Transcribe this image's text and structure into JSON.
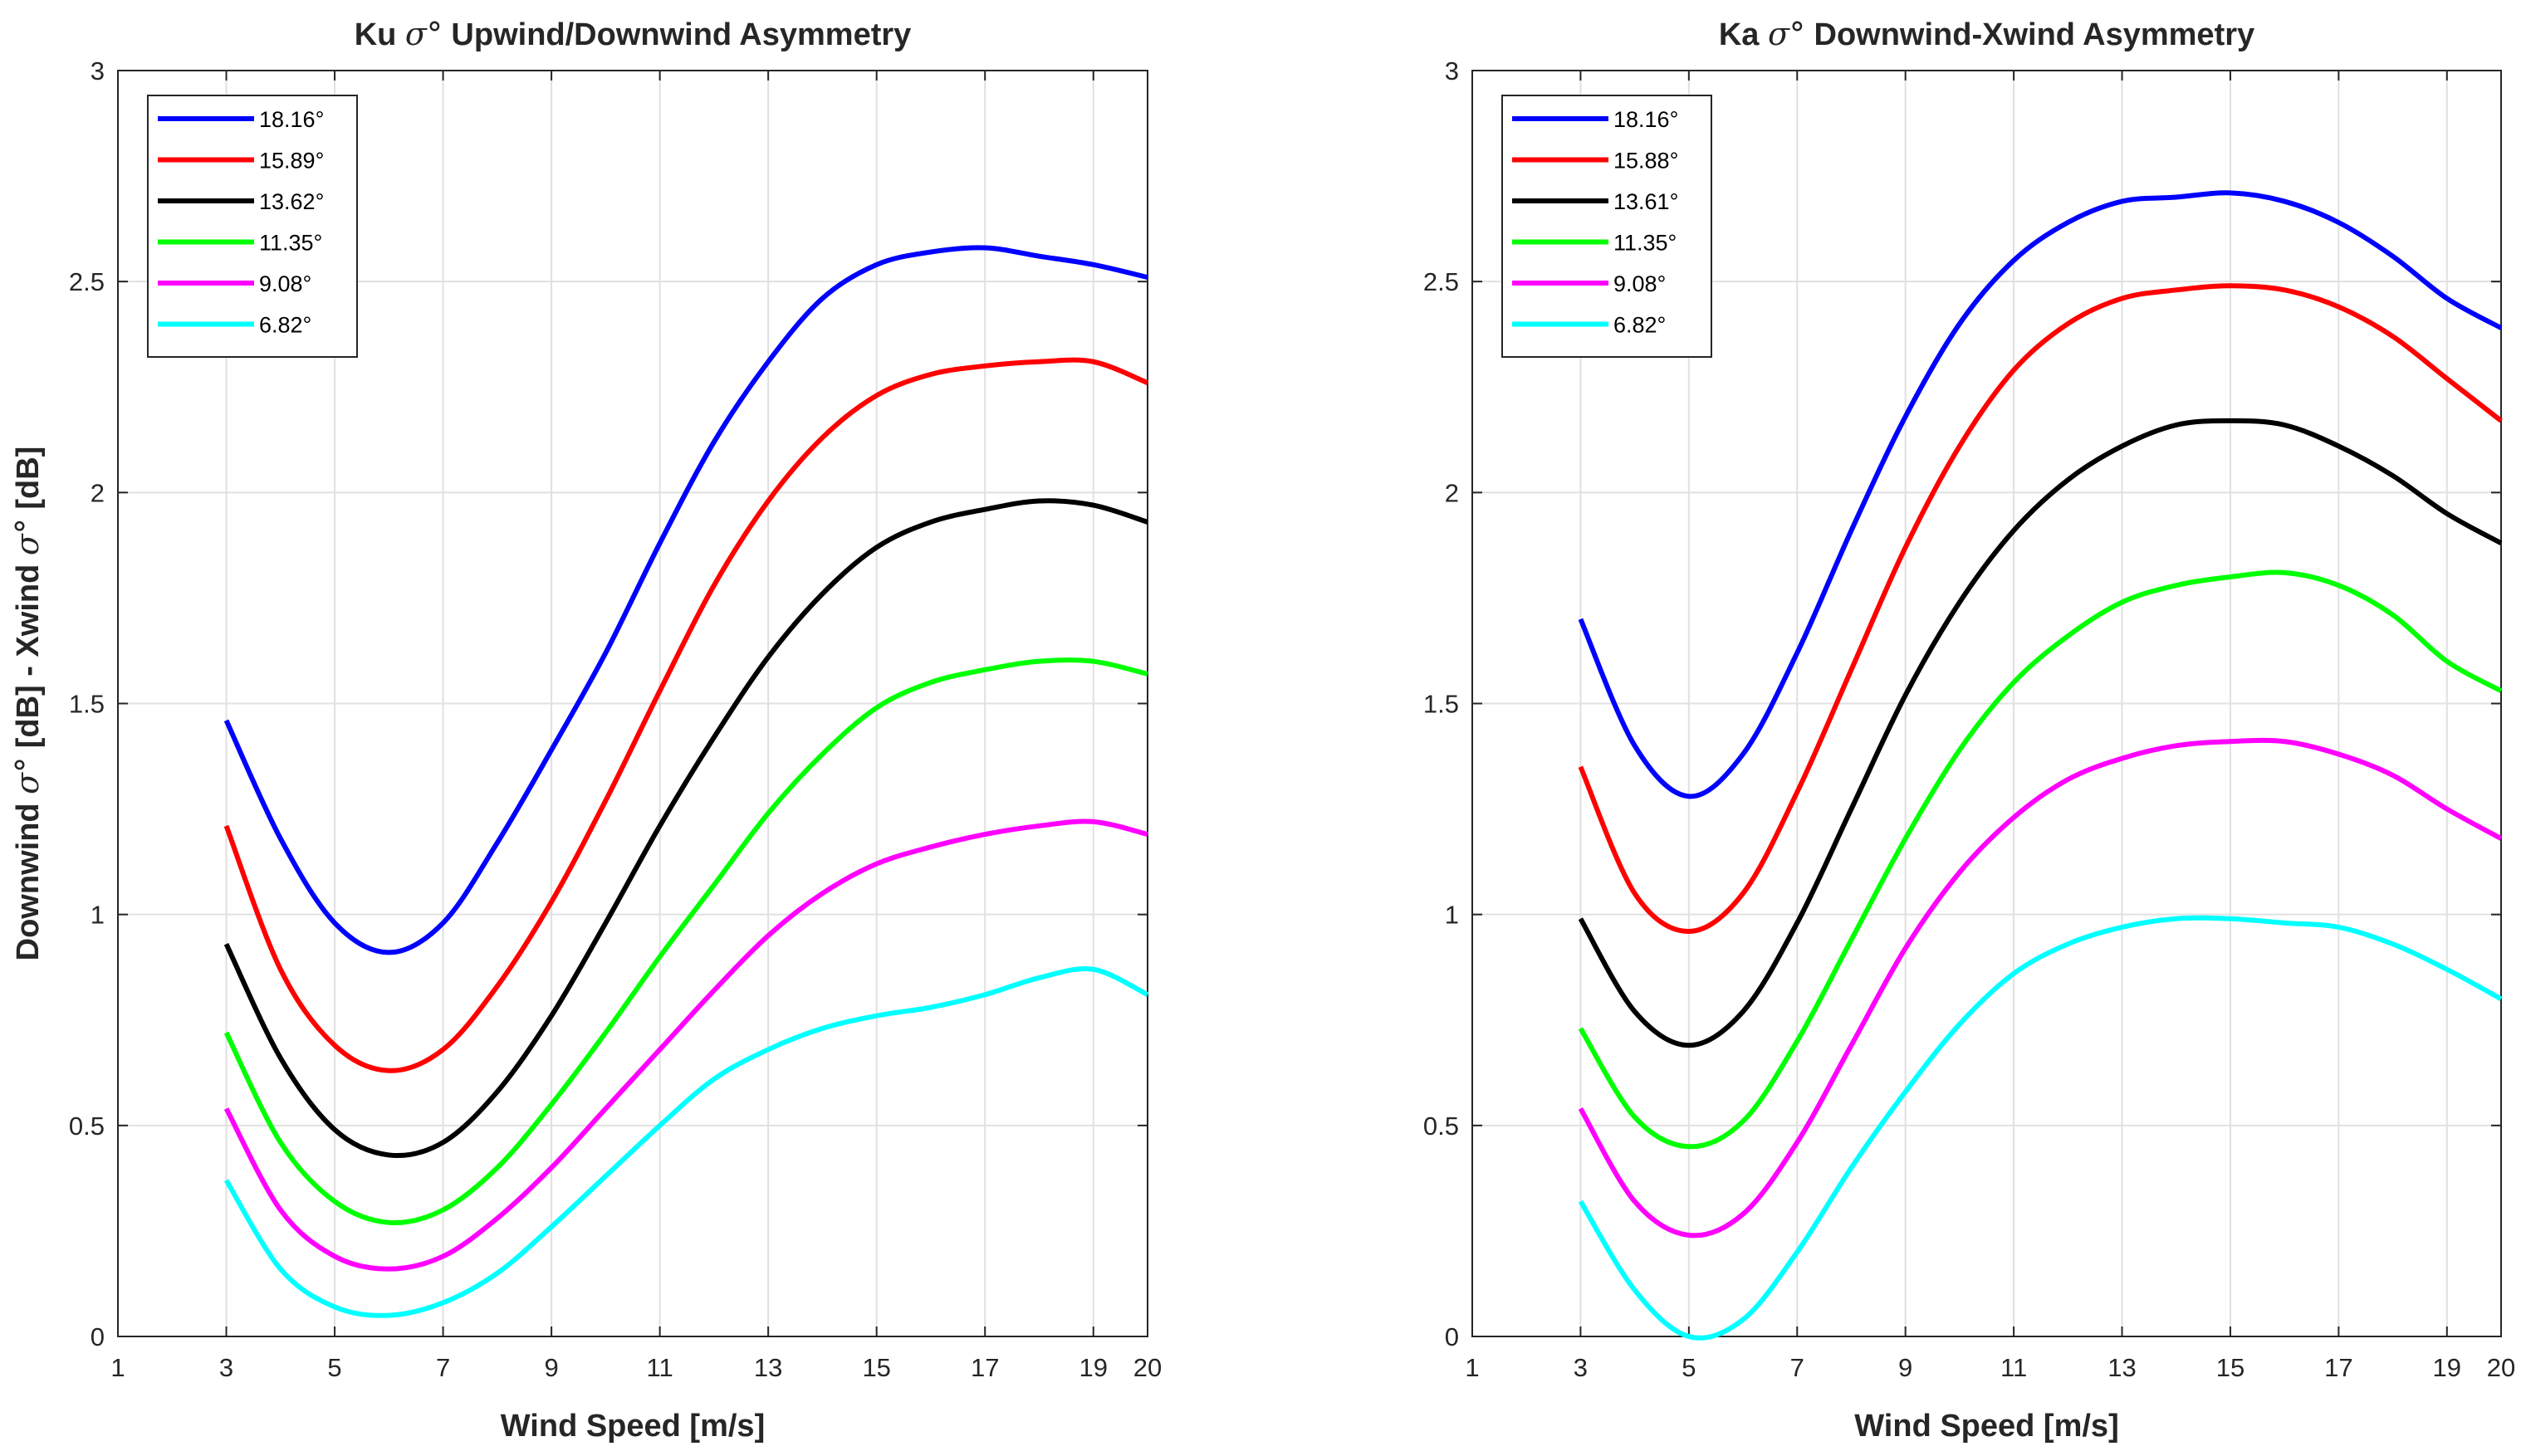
{
  "chart_data": [
    {
      "type": "line",
      "title_prefix": "Ku ",
      "title_symbol": "σ°",
      "title_suffix": " Upwind/Downwind Asymmetry",
      "xlabel": "Wind Speed [m/s]",
      "ylabel_part1": "Downwind ",
      "ylabel_symbol1": "σ°",
      "ylabel_part2": " [dB] - Xwind ",
      "ylabel_symbol2": "σ°",
      "ylabel_part3": " [dB]",
      "xlim": [
        1,
        20
      ],
      "ylim": [
        0,
        3
      ],
      "xticks": [
        1,
        3,
        5,
        7,
        9,
        11,
        13,
        15,
        17,
        19,
        20
      ],
      "yticks": [
        0,
        0.5,
        1,
        1.5,
        2,
        2.5,
        3
      ],
      "ytick_labels": [
        "0",
        "0.5",
        "1",
        "1.5",
        "2",
        "2.5",
        "3"
      ],
      "grid": true,
      "legend_position": "top-left",
      "series": [
        {
          "name": "18.16°",
          "color": "#0000ff",
          "points": [
            [
              3,
              1.46
            ],
            [
              4,
              1.18
            ],
            [
              5,
              0.98
            ],
            [
              6,
              0.91
            ],
            [
              7,
              0.98
            ],
            [
              8,
              1.17
            ],
            [
              9,
              1.39
            ],
            [
              10,
              1.62
            ],
            [
              11,
              1.88
            ],
            [
              12,
              2.12
            ],
            [
              13,
              2.31
            ],
            [
              14,
              2.46
            ],
            [
              15,
              2.54
            ],
            [
              16,
              2.57
            ],
            [
              17,
              2.58
            ],
            [
              18,
              2.56
            ],
            [
              19,
              2.54
            ],
            [
              20,
              2.51
            ]
          ]
        },
        {
          "name": "15.89°",
          "color": "#ff0000",
          "points": [
            [
              3,
              1.21
            ],
            [
              4,
              0.87
            ],
            [
              5,
              0.69
            ],
            [
              6,
              0.63
            ],
            [
              7,
              0.68
            ],
            [
              8,
              0.83
            ],
            [
              9,
              1.03
            ],
            [
              10,
              1.27
            ],
            [
              11,
              1.53
            ],
            [
              12,
              1.78
            ],
            [
              13,
              1.98
            ],
            [
              14,
              2.13
            ],
            [
              15,
              2.23
            ],
            [
              16,
              2.28
            ],
            [
              17,
              2.3
            ],
            [
              18,
              2.31
            ],
            [
              19,
              2.31
            ],
            [
              20,
              2.26
            ]
          ]
        },
        {
          "name": "13.62°",
          "color": "#000000",
          "points": [
            [
              3,
              0.93
            ],
            [
              4,
              0.66
            ],
            [
              5,
              0.49
            ],
            [
              6,
              0.43
            ],
            [
              7,
              0.46
            ],
            [
              8,
              0.58
            ],
            [
              9,
              0.76
            ],
            [
              10,
              0.98
            ],
            [
              11,
              1.21
            ],
            [
              12,
              1.42
            ],
            [
              13,
              1.61
            ],
            [
              14,
              1.76
            ],
            [
              15,
              1.87
            ],
            [
              16,
              1.93
            ],
            [
              17,
              1.96
            ],
            [
              18,
              1.98
            ],
            [
              19,
              1.97
            ],
            [
              20,
              1.93
            ]
          ]
        },
        {
          "name": "11.35°",
          "color": "#00ff00",
          "points": [
            [
              3,
              0.72
            ],
            [
              4,
              0.46
            ],
            [
              5,
              0.32
            ],
            [
              6,
              0.27
            ],
            [
              7,
              0.3
            ],
            [
              8,
              0.4
            ],
            [
              9,
              0.55
            ],
            [
              10,
              0.72
            ],
            [
              11,
              0.9
            ],
            [
              12,
              1.07
            ],
            [
              13,
              1.24
            ],
            [
              14,
              1.38
            ],
            [
              15,
              1.49
            ],
            [
              16,
              1.55
            ],
            [
              17,
              1.58
            ],
            [
              18,
              1.6
            ],
            [
              19,
              1.6
            ],
            [
              20,
              1.57
            ]
          ]
        },
        {
          "name": "9.08°",
          "color": "#ff00ff",
          "points": [
            [
              3,
              0.54
            ],
            [
              4,
              0.3
            ],
            [
              5,
              0.19
            ],
            [
              6,
              0.16
            ],
            [
              7,
              0.19
            ],
            [
              8,
              0.28
            ],
            [
              9,
              0.4
            ],
            [
              10,
              0.54
            ],
            [
              11,
              0.68
            ],
            [
              12,
              0.82
            ],
            [
              13,
              0.95
            ],
            [
              14,
              1.05
            ],
            [
              15,
              1.12
            ],
            [
              16,
              1.16
            ],
            [
              17,
              1.19
            ],
            [
              18,
              1.21
            ],
            [
              19,
              1.22
            ],
            [
              20,
              1.19
            ]
          ]
        },
        {
          "name": "6.82°",
          "color": "#00ffff",
          "points": [
            [
              3,
              0.37
            ],
            [
              4,
              0.16
            ],
            [
              5,
              0.07
            ],
            [
              6,
              0.05
            ],
            [
              7,
              0.08
            ],
            [
              8,
              0.15
            ],
            [
              9,
              0.26
            ],
            [
              10,
              0.38
            ],
            [
              11,
              0.5
            ],
            [
              12,
              0.61
            ],
            [
              13,
              0.68
            ],
            [
              14,
              0.73
            ],
            [
              15,
              0.76
            ],
            [
              16,
              0.78
            ],
            [
              17,
              0.81
            ],
            [
              18,
              0.85
            ],
            [
              19,
              0.87
            ],
            [
              20,
              0.81
            ]
          ]
        }
      ]
    },
    {
      "type": "line",
      "title_prefix": "Ka ",
      "title_symbol": "σ°",
      "title_suffix": " Downwind-Xwind Asymmetry",
      "xlabel": "Wind Speed [m/s]",
      "xlim": [
        1,
        20
      ],
      "ylim": [
        0,
        3
      ],
      "xticks": [
        1,
        3,
        5,
        7,
        9,
        11,
        13,
        15,
        17,
        19,
        20
      ],
      "yticks": [
        0,
        0.5,
        1,
        1.5,
        2,
        2.5,
        3
      ],
      "ytick_labels": [
        "0",
        "0.5",
        "1",
        "1.5",
        "2",
        "2.5",
        "3"
      ],
      "grid": true,
      "legend_position": "top-left",
      "series": [
        {
          "name": "18.16°",
          "color": "#0000ff",
          "points": [
            [
              3,
              1.7
            ],
            [
              4,
              1.4
            ],
            [
              5,
              1.28
            ],
            [
              6,
              1.38
            ],
            [
              7,
              1.62
            ],
            [
              8,
              1.91
            ],
            [
              9,
              2.18
            ],
            [
              10,
              2.4
            ],
            [
              11,
              2.55
            ],
            [
              12,
              2.64
            ],
            [
              13,
              2.69
            ],
            [
              14,
              2.7
            ],
            [
              15,
              2.71
            ],
            [
              16,
              2.69
            ],
            [
              17,
              2.64
            ],
            [
              18,
              2.56
            ],
            [
              19,
              2.46
            ],
            [
              20,
              2.39
            ]
          ]
        },
        {
          "name": "15.88°",
          "color": "#ff0000",
          "points": [
            [
              3,
              1.35
            ],
            [
              4,
              1.05
            ],
            [
              5,
              0.96
            ],
            [
              6,
              1.05
            ],
            [
              7,
              1.29
            ],
            [
              8,
              1.58
            ],
            [
              9,
              1.87
            ],
            [
              10,
              2.11
            ],
            [
              11,
              2.29
            ],
            [
              12,
              2.4
            ],
            [
              13,
              2.46
            ],
            [
              14,
              2.48
            ],
            [
              15,
              2.49
            ],
            [
              16,
              2.48
            ],
            [
              17,
              2.44
            ],
            [
              18,
              2.37
            ],
            [
              19,
              2.27
            ],
            [
              20,
              2.17
            ]
          ]
        },
        {
          "name": "13.61°",
          "color": "#000000",
          "points": [
            [
              3,
              0.99
            ],
            [
              4,
              0.77
            ],
            [
              5,
              0.69
            ],
            [
              6,
              0.77
            ],
            [
              7,
              0.98
            ],
            [
              8,
              1.25
            ],
            [
              9,
              1.52
            ],
            [
              10,
              1.74
            ],
            [
              11,
              1.91
            ],
            [
              12,
              2.03
            ],
            [
              13,
              2.11
            ],
            [
              14,
              2.16
            ],
            [
              15,
              2.17
            ],
            [
              16,
              2.16
            ],
            [
              17,
              2.11
            ],
            [
              18,
              2.04
            ],
            [
              19,
              1.95
            ],
            [
              20,
              1.88
            ]
          ]
        },
        {
          "name": "11.35°",
          "color": "#00ff00",
          "points": [
            [
              3,
              0.73
            ],
            [
              4,
              0.52
            ],
            [
              5,
              0.45
            ],
            [
              6,
              0.51
            ],
            [
              7,
              0.7
            ],
            [
              8,
              0.94
            ],
            [
              9,
              1.18
            ],
            [
              10,
              1.39
            ],
            [
              11,
              1.55
            ],
            [
              12,
              1.66
            ],
            [
              13,
              1.74
            ],
            [
              14,
              1.78
            ],
            [
              15,
              1.8
            ],
            [
              16,
              1.81
            ],
            [
              17,
              1.78
            ],
            [
              18,
              1.71
            ],
            [
              19,
              1.6
            ],
            [
              20,
              1.53
            ]
          ]
        },
        {
          "name": "9.08°",
          "color": "#ff00ff",
          "points": [
            [
              3,
              0.54
            ],
            [
              4,
              0.32
            ],
            [
              5,
              0.24
            ],
            [
              6,
              0.29
            ],
            [
              7,
              0.46
            ],
            [
              8,
              0.69
            ],
            [
              9,
              0.92
            ],
            [
              10,
              1.1
            ],
            [
              11,
              1.23
            ],
            [
              12,
              1.32
            ],
            [
              13,
              1.37
            ],
            [
              14,
              1.4
            ],
            [
              15,
              1.41
            ],
            [
              16,
              1.41
            ],
            [
              17,
              1.38
            ],
            [
              18,
              1.33
            ],
            [
              19,
              1.25
            ],
            [
              20,
              1.18
            ]
          ]
        },
        {
          "name": "6.82°",
          "color": "#00ffff",
          "points": [
            [
              3,
              0.32
            ],
            [
              4,
              0.11
            ],
            [
              5,
              0.0
            ],
            [
              6,
              0.04
            ],
            [
              7,
              0.2
            ],
            [
              8,
              0.4
            ],
            [
              9,
              0.58
            ],
            [
              10,
              0.74
            ],
            [
              11,
              0.86
            ],
            [
              12,
              0.93
            ],
            [
              13,
              0.97
            ],
            [
              14,
              0.99
            ],
            [
              15,
              0.99
            ],
            [
              16,
              0.98
            ],
            [
              17,
              0.97
            ],
            [
              18,
              0.93
            ],
            [
              19,
              0.87
            ],
            [
              20,
              0.8
            ]
          ]
        }
      ]
    }
  ]
}
